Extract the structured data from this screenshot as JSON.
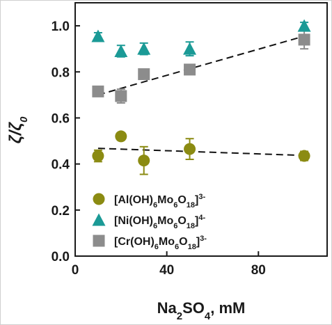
{
  "chart_data": {
    "type": "scatter",
    "xlabel": {
      "base": "Na",
      "sub1": "2",
      "mid": "SO",
      "sub2": "4",
      "tail": ", mM"
    },
    "ylabel": {
      "main": "ζ/ζ",
      "sub": "0"
    },
    "xlim": [
      0,
      110
    ],
    "ylim": [
      0.0,
      1.1
    ],
    "xticks": [
      0,
      40,
      80
    ],
    "yticks": [
      0.0,
      0.2,
      0.4,
      0.6,
      0.8,
      1.0
    ],
    "xtick_labels": [
      "0",
      "40",
      "80"
    ],
    "ytick_labels": [
      "0.0",
      "0.2",
      "0.4",
      "0.6",
      "0.8",
      "1.0"
    ],
    "grid": false,
    "legend_position": "bottom-left",
    "series": [
      {
        "key": "al",
        "legend": {
          "main": "[Al(OH)",
          "s1": "6",
          "m2": "Mo",
          "s2": "6",
          "m3": "O",
          "s3": "18",
          "m4": "]",
          "sup": "3-"
        },
        "marker": "circle",
        "color": "#8b8b12",
        "points": [
          {
            "x": 10,
            "y": 0.435,
            "err": 0.025
          },
          {
            "x": 20,
            "y": 0.52,
            "err": 0.015
          },
          {
            "x": 30,
            "y": 0.415,
            "err": 0.06
          },
          {
            "x": 50,
            "y": 0.465,
            "err": 0.045
          },
          {
            "x": 100,
            "y": 0.435,
            "err": 0.02
          }
        ],
        "trend": {
          "x": [
            10,
            100
          ],
          "y": [
            0.468,
            0.437
          ]
        }
      },
      {
        "key": "ni",
        "legend": {
          "main": "[Ni(OH)",
          "s1": "6",
          "m2": "Mo",
          "s2": "6",
          "m3": "O",
          "s3": "18",
          "m4": "]",
          "sup": "4-"
        },
        "marker": "triangle",
        "color": "#1b9a96",
        "points": [
          {
            "x": 10,
            "y": 0.955,
            "err": 0.015
          },
          {
            "x": 20,
            "y": 0.89,
            "err": 0.025
          },
          {
            "x": 30,
            "y": 0.9,
            "err": 0.025
          },
          {
            "x": 50,
            "y": 0.9,
            "err": 0.03
          },
          {
            "x": 100,
            "y": 1.0,
            "err": 0.015
          }
        ]
      },
      {
        "key": "cr",
        "legend": {
          "main": "[Cr(OH)",
          "s1": "6",
          "m2": "Mo",
          "s2": "6",
          "m3": "O",
          "s3": "18",
          "m4": "]",
          "sup": "3-"
        },
        "marker": "square",
        "color": "#8c8c8c",
        "points": [
          {
            "x": 10,
            "y": 0.715,
            "err": 0.02
          },
          {
            "x": 20,
            "y": 0.695,
            "err": 0.03
          },
          {
            "x": 30,
            "y": 0.79,
            "err": 0.015
          },
          {
            "x": 50,
            "y": 0.81,
            "err": 0.02
          },
          {
            "x": 100,
            "y": 0.94,
            "err": 0.04
          }
        ],
        "trend": {
          "x": [
            10,
            100
          ],
          "y": [
            0.7,
            0.955
          ]
        }
      }
    ]
  }
}
